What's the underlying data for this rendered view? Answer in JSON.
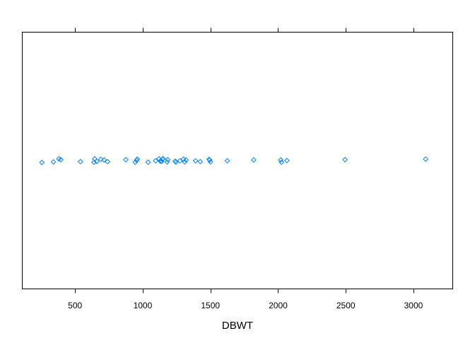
{
  "chart_data": {
    "type": "scatter",
    "title": "",
    "xlabel": "DBWT",
    "ylabel": "",
    "xlim": [
      110,
      3290
    ],
    "ticks": [
      500,
      1000,
      1500,
      2000,
      2500,
      3000
    ],
    "tick_labels": [
      "500",
      "1000",
      "1500",
      "2000",
      "2500",
      "3000"
    ],
    "point_color": "#0080ff",
    "frame_color": "#000000",
    "jitter": [
      0.35,
      0.25,
      -0.3,
      -0.15,
      0.2,
      0.3,
      -0.3,
      0.15,
      -0.2,
      -0.1,
      0.2,
      -0.15,
      0.3,
      -0.05,
      -0.25,
      0.3,
      0.05,
      -0.3,
      0.1,
      0.15,
      -0.2,
      -0.35,
      0.25,
      -0.15,
      0.1,
      0.3,
      0.05,
      -0.25,
      0.25,
      -0.1,
      0.05,
      0.2,
      -0.2,
      -0.1,
      0.25,
      0.05,
      -0.1,
      -0.1,
      0.3,
      0.0,
      -0.15,
      -0.25,
      -0.35,
      -0.15
    ],
    "points": [
      255,
      340,
      380,
      395,
      540,
      640,
      645,
      660,
      690,
      715,
      740,
      875,
      945,
      955,
      960,
      1040,
      1095,
      1120,
      1130,
      1140,
      1145,
      1150,
      1180,
      1185,
      1240,
      1245,
      1275,
      1300,
      1310,
      1320,
      1390,
      1425,
      1490,
      1495,
      1500,
      1625,
      1820,
      2020,
      2025,
      2065,
      2495,
      3090
    ]
  }
}
